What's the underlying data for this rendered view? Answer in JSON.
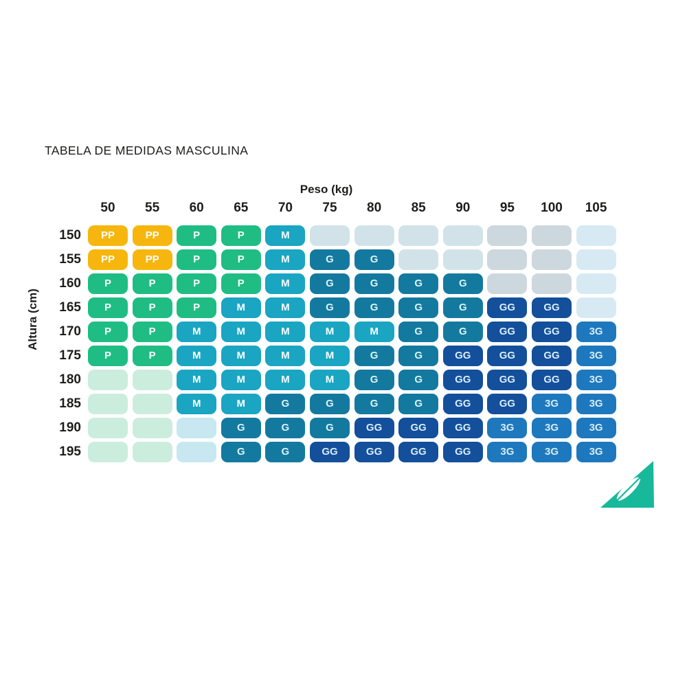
{
  "title": "TABELA DE MEDIDAS MASCULINA",
  "chart_data": {
    "type": "heatmap",
    "title": "TABELA DE MEDIDAS MASCULINA",
    "xlabel": "Peso (kg)",
    "ylabel": "Altura (cm)",
    "x": [
      "50",
      "55",
      "60",
      "65",
      "70",
      "75",
      "80",
      "85",
      "90",
      "95",
      "100",
      "105"
    ],
    "y": [
      "150",
      "155",
      "160",
      "165",
      "170",
      "175",
      "180",
      "185",
      "190",
      "195"
    ],
    "sizes_shown": [
      "PP",
      "P",
      "M",
      "G",
      "GG",
      "3G"
    ],
    "cells": [
      [
        "PP",
        "PP",
        "P",
        "P",
        "M",
        "",
        "",
        "",
        "",
        "",
        "",
        ""
      ],
      [
        "PP",
        "PP",
        "P",
        "P",
        "M",
        "G",
        "G",
        "",
        "",
        "",
        "",
        ""
      ],
      [
        "P",
        "P",
        "P",
        "P",
        "M",
        "G",
        "G",
        "G",
        "G",
        "",
        "",
        ""
      ],
      [
        "P",
        "P",
        "P",
        "M",
        "M",
        "G",
        "G",
        "G",
        "G",
        "GG",
        "GG",
        ""
      ],
      [
        "P",
        "P",
        "M",
        "M",
        "M",
        "M",
        "M",
        "G",
        "G",
        "GG",
        "GG",
        "3G"
      ],
      [
        "P",
        "P",
        "M",
        "M",
        "M",
        "M",
        "G",
        "G",
        "GG",
        "GG",
        "GG",
        "3G"
      ],
      [
        "",
        "",
        "M",
        "M",
        "M",
        "M",
        "G",
        "G",
        "GG",
        "GG",
        "GG",
        "3G"
      ],
      [
        "",
        "",
        "M",
        "M",
        "G",
        "G",
        "G",
        "G",
        "GG",
        "GG",
        "3G",
        "3G"
      ],
      [
        "",
        "",
        "",
        "G",
        "G",
        "G",
        "GG",
        "GG",
        "GG",
        "3G",
        "3G",
        "3G"
      ],
      [
        "",
        "",
        "",
        "G",
        "G",
        "GG",
        "GG",
        "GG",
        "GG",
        "3G",
        "3G",
        "3G"
      ]
    ],
    "tints": [
      [
        "PP",
        "PP",
        "P",
        "P",
        "M",
        "teal",
        "teal",
        "teal",
        "teal",
        "gray",
        "gray",
        "blue"
      ],
      [
        "PP",
        "PP",
        "P",
        "P",
        "M",
        "G",
        "G",
        "teal",
        "teal",
        "gray",
        "gray",
        "blue"
      ],
      [
        "P",
        "P",
        "P",
        "P",
        "M",
        "G",
        "G",
        "G",
        "G",
        "gray",
        "gray",
        "blue"
      ],
      [
        "P",
        "P",
        "P",
        "M",
        "M",
        "G",
        "G",
        "G",
        "G",
        "GG",
        "GG",
        "blue"
      ],
      [
        "P",
        "P",
        "M",
        "M",
        "M",
        "M",
        "M",
        "G",
        "G",
        "GG",
        "GG",
        "3G"
      ],
      [
        "P",
        "P",
        "M",
        "M",
        "M",
        "M",
        "G",
        "G",
        "GG",
        "GG",
        "GG",
        "3G"
      ],
      [
        "mint",
        "mint",
        "M",
        "M",
        "M",
        "M",
        "G",
        "G",
        "GG",
        "GG",
        "GG",
        "3G"
      ],
      [
        "mint",
        "mint",
        "M",
        "M",
        "G",
        "G",
        "G",
        "G",
        "GG",
        "GG",
        "3G",
        "3G"
      ],
      [
        "mint",
        "mint",
        "cyan",
        "G",
        "G",
        "G",
        "GG",
        "GG",
        "GG",
        "3G",
        "3G",
        "3G"
      ],
      [
        "mint",
        "mint",
        "cyan",
        "G",
        "G",
        "GG",
        "GG",
        "GG",
        "GG",
        "3G",
        "3G",
        "3G"
      ]
    ],
    "palette": {
      "PP": {
        "bg": "#F6B60D",
        "fg": "#FFFFFF"
      },
      "P": {
        "bg": "#1FBD83",
        "fg": "#FFFFFF"
      },
      "M": {
        "bg": "#1AA5C2",
        "fg": "#FFFFFF"
      },
      "G": {
        "bg": "#14799F",
        "fg": "#D9F4F6"
      },
      "GG": {
        "bg": "#134F9B",
        "fg": "#D8ECFB"
      },
      "3G": {
        "bg": "#1D78BE",
        "fg": "#D7EDF9"
      },
      "mint": {
        "bg": "#CBEDDD",
        "fg": ""
      },
      "cyan": {
        "bg": "#C7E8F0",
        "fg": ""
      },
      "teal": {
        "bg": "#D1E3E9",
        "fg": ""
      },
      "gray": {
        "bg": "#CDD7DE",
        "fg": ""
      },
      "blue": {
        "bg": "#D7EAF3",
        "fg": ""
      }
    },
    "legend_position": "none",
    "grid": false
  },
  "logo": {
    "name": "triangle-feather-brand-mark",
    "color": "#18B89B",
    "feather_color": "#FFFFFF"
  }
}
